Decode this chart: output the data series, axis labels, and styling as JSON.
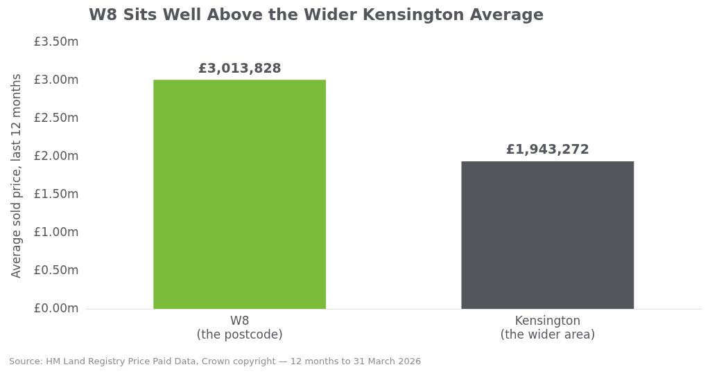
{
  "chart_data": {
    "type": "bar",
    "title": "W8 Sits Well Above the Wider Kensington Average",
    "ylabel": "Average sold price, last 12 months",
    "categories": [
      "W8\n(the postcode)",
      "Kensington\n(the wider area)"
    ],
    "values": [
      3013828,
      1943272
    ],
    "colors": [
      "#7bbd3a",
      "#53565a"
    ],
    "value_labels": [
      "£3,013,828",
      "£1,943,272"
    ],
    "ylim": [
      0,
      3500000
    ],
    "yticks": [
      {
        "value": 0,
        "label": "£0.00m"
      },
      {
        "value": 500000,
        "label": "£0.50m"
      },
      {
        "value": 1000000,
        "label": "£1.00m"
      },
      {
        "value": 1500000,
        "label": "£1.50m"
      },
      {
        "value": 2000000,
        "label": "£2.00m"
      },
      {
        "value": 2500000,
        "label": "£2.50m"
      },
      {
        "value": 3000000,
        "label": "£3.00m"
      },
      {
        "value": 3500000,
        "label": "£3.50m"
      }
    ],
    "grid": false,
    "legend": false,
    "annotations": [
      "Source: HM Land Registry Price Paid Data, Crown copyright — 12 months to 31 March 2026"
    ]
  }
}
